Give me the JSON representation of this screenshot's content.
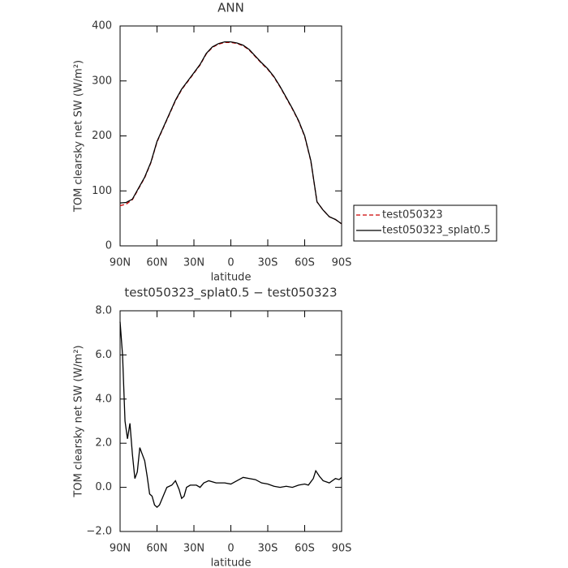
{
  "chart_data": [
    {
      "type": "line",
      "title": "ANN",
      "ylabel": "TOM clearsky net SW (W/m²)",
      "xlabel": "latitude",
      "x": [
        90,
        85,
        80,
        75,
        70,
        65,
        60,
        55,
        50,
        45,
        40,
        35,
        30,
        25,
        20,
        15,
        10,
        5,
        0,
        -5,
        -10,
        -15,
        -20,
        -25,
        -30,
        -35,
        -40,
        -45,
        -50,
        -55,
        -60,
        -65,
        -70,
        -75,
        -80,
        -85,
        -90
      ],
      "series": [
        {
          "name": "test050323",
          "color": "#cc0000",
          "dash": true,
          "values": [
            73,
            76,
            84,
            104,
            124,
            151,
            189,
            214,
            239,
            264,
            284,
            299,
            314,
            329,
            349,
            361,
            367,
            370,
            370,
            368,
            364,
            356,
            344,
            332,
            321,
            307,
            289,
            269,
            249,
            227,
            199,
            154,
            80,
            65,
            53,
            48,
            40
          ]
        },
        {
          "name": "test050323_splat0.5",
          "color": "#000000",
          "dash": false,
          "values": [
            78,
            79,
            85,
            105,
            125,
            152,
            190,
            215,
            240,
            265,
            285,
            300,
            315,
            330,
            350,
            362,
            368,
            371,
            371,
            369,
            365,
            357,
            345,
            333,
            322,
            308,
            290,
            270,
            250,
            228,
            200,
            155,
            80,
            65,
            53,
            48,
            40
          ]
        }
      ],
      "xlim": [
        90,
        -90
      ],
      "xticks": [
        {
          "value": 90,
          "label": "90N"
        },
        {
          "value": 60,
          "label": "60N"
        },
        {
          "value": 30,
          "label": "30N"
        },
        0,
        {
          "value": -30,
          "label": "30S"
        },
        {
          "value": -60,
          "label": "60S"
        },
        {
          "value": -90,
          "label": "90S"
        }
      ],
      "ylim": [
        0,
        400
      ],
      "yticks": [
        0,
        100,
        200,
        300,
        400
      ],
      "legend": "right"
    },
    {
      "type": "line",
      "title": "test050323_splat0.5 − test050323",
      "ylabel": "TOM clearsky net SW (W/m²)",
      "xlabel": "latitude",
      "x": [
        90,
        88,
        86,
        84,
        82,
        80,
        78,
        76,
        74,
        72,
        70,
        68,
        66,
        64,
        62,
        60,
        58,
        55,
        52,
        48,
        45,
        42,
        40,
        38,
        36,
        33,
        28,
        25,
        22,
        18,
        12,
        5,
        0,
        -5,
        -10,
        -15,
        -20,
        -25,
        -30,
        -35,
        -40,
        -45,
        -50,
        -55,
        -60,
        -63,
        -67,
        -69,
        -72,
        -75,
        -80,
        -85,
        -88,
        -90
      ],
      "values": [
        7.5,
        6.0,
        3.0,
        2.2,
        2.9,
        1.5,
        0.4,
        0.7,
        1.8,
        1.5,
        1.2,
        0.5,
        -0.3,
        -0.4,
        -0.8,
        -0.9,
        -0.8,
        -0.4,
        0.0,
        0.1,
        0.3,
        -0.1,
        -0.5,
        -0.4,
        0.0,
        0.1,
        0.1,
        0.0,
        0.2,
        0.3,
        0.2,
        0.2,
        0.15,
        0.3,
        0.45,
        0.4,
        0.35,
        0.2,
        0.15,
        0.05,
        0.0,
        0.05,
        0.0,
        0.1,
        0.15,
        0.1,
        0.4,
        0.75,
        0.5,
        0.3,
        0.2,
        0.4,
        0.35,
        0.45
      ],
      "color": "#000000",
      "xlim": [
        90,
        -90
      ],
      "xticks": [
        {
          "value": 90,
          "label": "90N"
        },
        {
          "value": 60,
          "label": "60N"
        },
        {
          "value": 30,
          "label": "30N"
        },
        0,
        {
          "value": -30,
          "label": "30S"
        },
        {
          "value": -60,
          "label": "60S"
        },
        {
          "value": -90,
          "label": "90S"
        }
      ],
      "ylim": [
        -2,
        8
      ],
      "yticks": [
        {
          "value": -2,
          "label": "−2.0"
        },
        {
          "value": 0,
          "label": "0.0"
        },
        {
          "value": 2,
          "label": "2.0"
        },
        {
          "value": 4,
          "label": "4.0"
        },
        {
          "value": 6,
          "label": "6.0"
        },
        {
          "value": 8,
          "label": "8.0"
        }
      ]
    }
  ]
}
